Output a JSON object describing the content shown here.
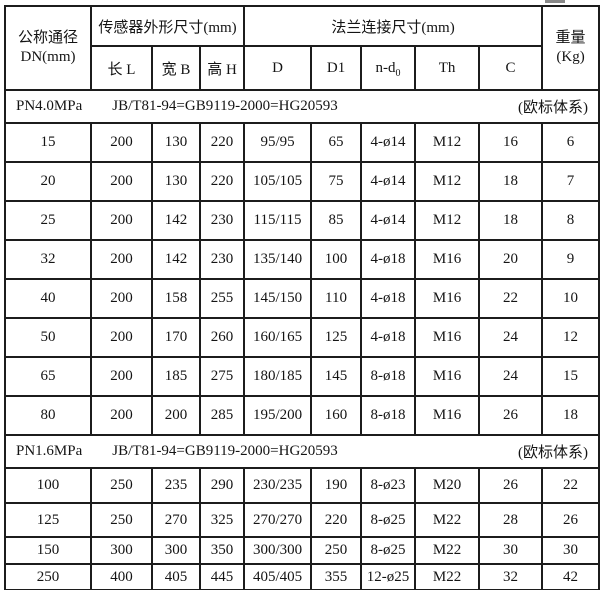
{
  "page": {
    "background": "#ffffff",
    "line_color": "#1c1c1c",
    "text_color": "#141414"
  },
  "table": {
    "header": {
      "dn_line1": "公称通径",
      "dn_line2": "DN(mm)",
      "sensor_group": "传感器外形尺寸(mm)",
      "flange_group": "法兰连接尺寸(mm)",
      "weight_line1": "重量",
      "weight_line2": "(Kg)",
      "cols": [
        "长 L",
        "宽 B",
        "高 H",
        "D",
        "D1",
        "Th",
        "C"
      ],
      "nd_main": "n-d",
      "nd_sub": "0"
    },
    "sections": [
      {
        "label": "PN4.0MPa",
        "standard": "JB/T81-94=GB9119-2000=HG20593",
        "note": "(欧标体系)",
        "rows": [
          [
            "15",
            "200",
            "130",
            "220",
            "95/95",
            "65",
            "4-ø14",
            "M12",
            "16",
            "6"
          ],
          [
            "20",
            "200",
            "130",
            "220",
            "105/105",
            "75",
            "4-ø14",
            "M12",
            "18",
            "7"
          ],
          [
            "25",
            "200",
            "142",
            "230",
            "115/115",
            "85",
            "4-ø14",
            "M12",
            "18",
            "8"
          ],
          [
            "32",
            "200",
            "142",
            "230",
            "135/140",
            "100",
            "4-ø18",
            "M16",
            "20",
            "9"
          ],
          [
            "40",
            "200",
            "158",
            "255",
            "145/150",
            "110",
            "4-ø18",
            "M16",
            "22",
            "10"
          ],
          [
            "50",
            "200",
            "170",
            "260",
            "160/165",
            "125",
            "4-ø18",
            "M16",
            "24",
            "12"
          ],
          [
            "65",
            "200",
            "185",
            "275",
            "180/185",
            "145",
            "8-ø18",
            "M16",
            "24",
            "15"
          ],
          [
            "80",
            "200",
            "200",
            "285",
            "195/200",
            "160",
            "8-ø18",
            "M16",
            "26",
            "18"
          ]
        ]
      },
      {
        "label": "PN1.6MPa",
        "standard": "JB/T81-94=GB9119-2000=HG20593",
        "note": "(欧标体系)",
        "rows": [
          [
            "100",
            "250",
            "235",
            "290",
            "230/235",
            "190",
            "8-ø23",
            "M20",
            "26",
            "22"
          ],
          [
            "125",
            "250",
            "270",
            "325",
            "270/270",
            "220",
            "8-ø25",
            "M22",
            "28",
            "26"
          ],
          [
            "150",
            "300",
            "300",
            "350",
            "300/300",
            "250",
            "8-ø25",
            "M22",
            "30",
            "30"
          ],
          [
            "250",
            "400",
            "405",
            "445",
            "405/405",
            "355",
            "12-ø25",
            "M22",
            "32",
            "42"
          ]
        ]
      }
    ]
  }
}
